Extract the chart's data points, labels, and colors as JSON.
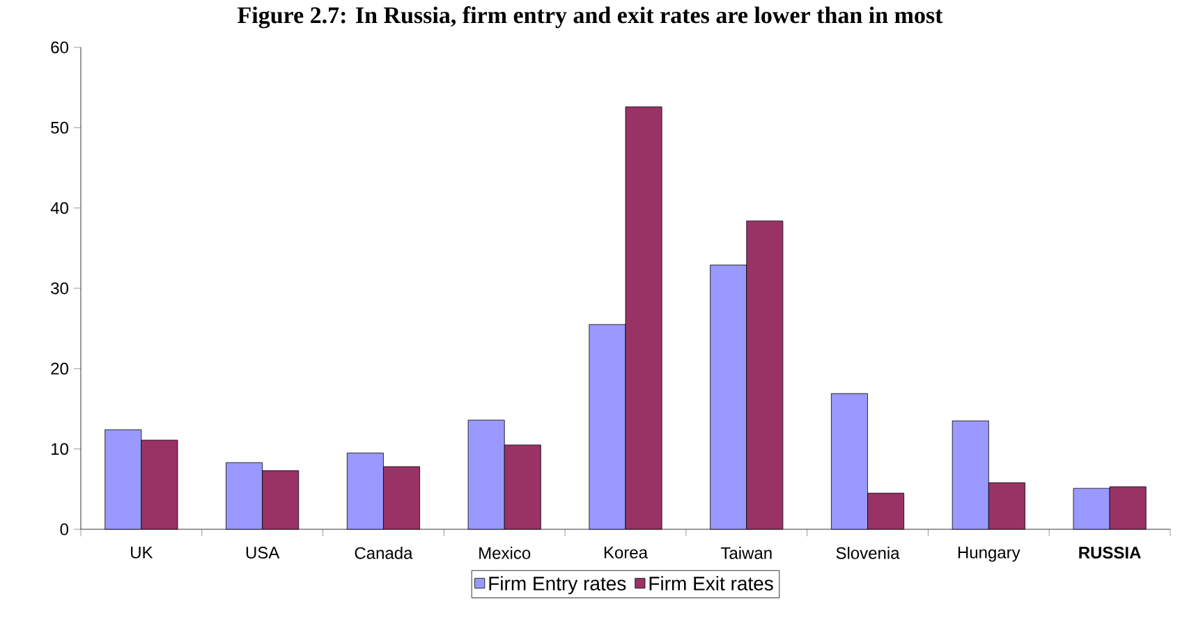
{
  "chart_data": {
    "type": "bar",
    "title": "Figure 2.7: In Russia, firm entry and exit rates are lower than in most",
    "categories": [
      "UK",
      "USA",
      "Canada",
      "Mexico",
      "Korea",
      "Taiwan",
      "Slovenia",
      "Hungary",
      "**RUSSIA**"
    ],
    "series": [
      {
        "name": "Firm Entry rates",
        "color": "#9999ff",
        "values": [
          12.4,
          8.3,
          9.5,
          13.6,
          25.5,
          32.9,
          16.9,
          13.5,
          5.1
        ]
      },
      {
        "name": "Firm Exit rates",
        "color": "#993366",
        "values": [
          11.1,
          7.3,
          7.8,
          10.5,
          52.6,
          38.4,
          4.5,
          5.8,
          5.3
        ]
      }
    ],
    "ylim": [
      0,
      60
    ],
    "yticks": [
      0,
      10,
      20,
      30,
      40,
      50,
      60
    ],
    "grid": false,
    "legend": "bottom"
  }
}
